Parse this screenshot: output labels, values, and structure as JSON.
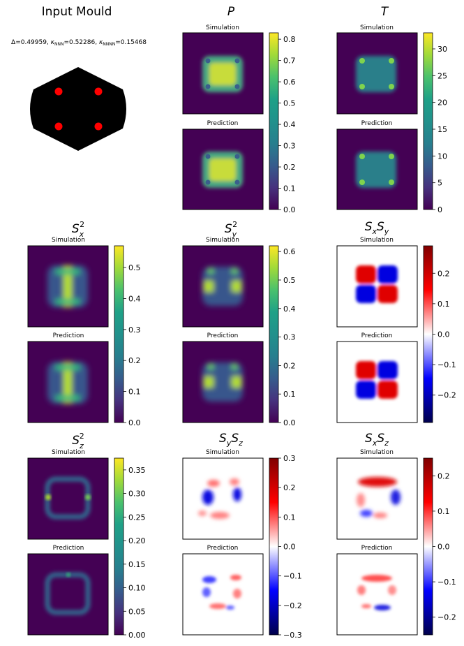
{
  "figure": {
    "mould_title": "Input Mould",
    "params": "Δ=0.49959, κ_NNN=0.52286, κ_NNNN=0.15468",
    "row_labels": {
      "top": "Simulation",
      "bottom": "Prediction"
    }
  },
  "chart_data": [
    {
      "type": "heatmap",
      "title": "P",
      "colormap": "viridis",
      "colorbar_range": [
        0,
        0.83
      ],
      "colorbar_ticks": [
        "0.0",
        "0.1",
        "0.2",
        "0.3",
        "0.4",
        "0.5",
        "0.6",
        "0.7",
        "0.8"
      ]
    },
    {
      "type": "heatmap",
      "title": "T",
      "colormap": "viridis",
      "colorbar_range": [
        0,
        33
      ],
      "colorbar_ticks": [
        "0",
        "5",
        "10",
        "15",
        "20",
        "25",
        "30"
      ]
    },
    {
      "type": "heatmap",
      "title": "S_x^2",
      "colormap": "viridis",
      "colorbar_range": [
        0,
        0.57
      ],
      "colorbar_ticks": [
        "0.0",
        "0.1",
        "0.2",
        "0.3",
        "0.4",
        "0.5"
      ]
    },
    {
      "type": "heatmap",
      "title": "S_y^2",
      "colormap": "viridis",
      "colorbar_range": [
        0,
        0.62
      ],
      "colorbar_ticks": [
        "0.0",
        "0.1",
        "0.2",
        "0.3",
        "0.4",
        "0.5",
        "0.6"
      ]
    },
    {
      "type": "heatmap",
      "title": "S_xS_y",
      "colormap": "seismic",
      "colorbar_range": [
        -0.29,
        0.29
      ],
      "colorbar_ticks": [
        "−0.2",
        "−0.1",
        "0.0",
        "0.1",
        "0.2"
      ]
    },
    {
      "type": "heatmap",
      "title": "S_z^2",
      "colormap": "viridis",
      "colorbar_range": [
        0,
        0.375
      ],
      "colorbar_ticks": [
        "0.00",
        "0.05",
        "0.10",
        "0.15",
        "0.20",
        "0.25",
        "0.30",
        "0.35"
      ]
    },
    {
      "type": "heatmap",
      "title": "S_yS_z",
      "colormap": "seismic",
      "colorbar_range": [
        -0.3,
        0.3
      ],
      "colorbar_ticks": [
        "−0.3",
        "−0.2",
        "−0.1",
        "0.0",
        "0.1",
        "0.2",
        "0.3"
      ]
    },
    {
      "type": "heatmap",
      "title": "S_xS_z",
      "colormap": "seismic",
      "colorbar_range": [
        -0.25,
        0.25
      ],
      "colorbar_ticks": [
        "−0.2",
        "−0.1",
        "0.0",
        "0.1",
        "0.2"
      ]
    }
  ]
}
